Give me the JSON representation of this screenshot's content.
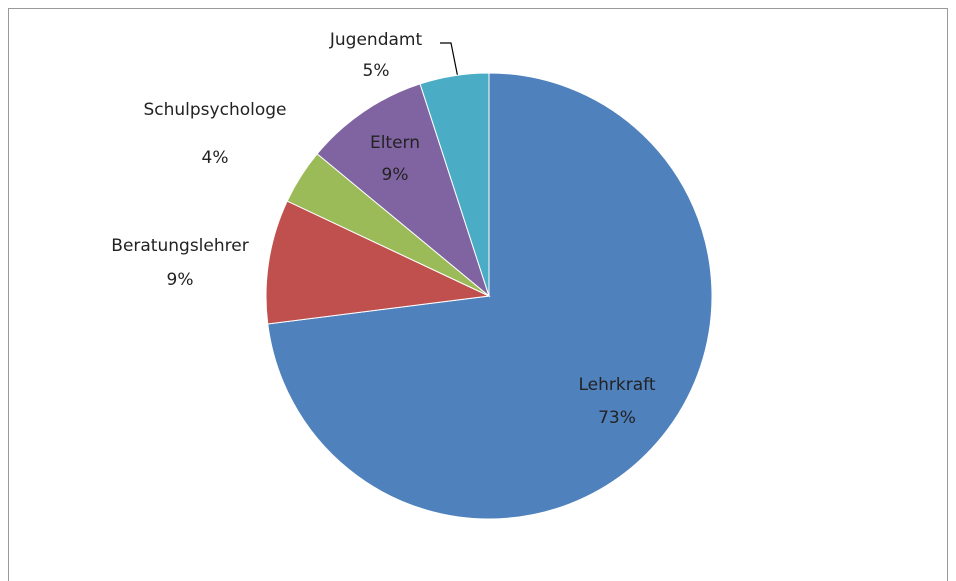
{
  "chart_data": {
    "type": "pie",
    "categories": [
      "Lehrkraft",
      "Beratungslehrer",
      "Schulpsychologe",
      "Eltern",
      "Jugendamt"
    ],
    "values": [
      73,
      9,
      4,
      9,
      5
    ],
    "value_labels": [
      "73%",
      "9%",
      "4%",
      "9%",
      "5%"
    ],
    "colors": [
      "#4f81bd",
      "#c0504d",
      "#9bbb59",
      "#8064a2",
      "#4bacc6"
    ]
  }
}
